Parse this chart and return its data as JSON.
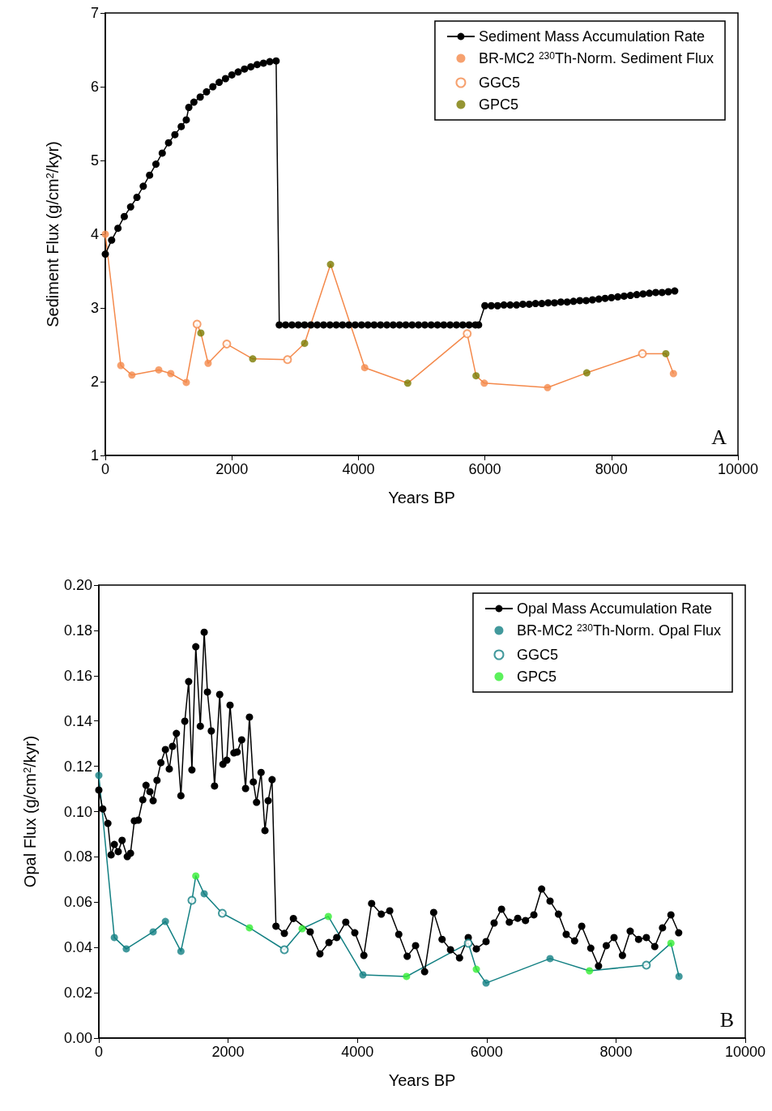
{
  "chart_data": [
    {
      "type": "line",
      "xlabel": "Years BP",
      "ylabel": "Sediment Flux (g/cm$^{2}$/kyr)",
      "annotations": [
        "A"
      ],
      "xlim": [
        0,
        10000
      ],
      "xticks": [
        0,
        2000,
        4000,
        6000,
        8000,
        10000
      ],
      "ylim": [
        1,
        7
      ],
      "yticks": [
        1,
        2,
        3,
        4,
        5,
        6,
        7
      ],
      "grid": false,
      "legend": "top right",
      "line_style": "solid",
      "x": [
        0,
        245,
        420,
        845,
        1035,
        1280,
        1450,
        1510,
        1625,
        1920,
        2330,
        2880,
        3150,
        3560,
        4100,
        4780,
        5720,
        5860,
        5990,
        6990,
        7610,
        8490,
        8860,
        8980
      ],
      "series": [
        {
          "name": "Sediment Mass Accumulation Rate",
          "type": "line",
          "marker": "circle",
          "color": "#000000",
          "x": [
            0,
            100,
            200,
            300,
            400,
            500,
            600,
            700,
            800,
            900,
            1000,
            1100,
            1200,
            1280,
            1320,
            1400,
            1500,
            1600,
            1700,
            1800,
            1900,
            2000,
            2100,
            2200,
            2300,
            2400,
            2500,
            2600,
            2700,
            2750,
            2850,
            2950,
            3050,
            3150,
            3250,
            3350,
            3450,
            3550,
            3650,
            3750,
            3850,
            3950,
            4050,
            4150,
            4250,
            4350,
            4450,
            4550,
            4650,
            4750,
            4850,
            4950,
            5050,
            5150,
            5250,
            5350,
            5450,
            5550,
            5650,
            5750,
            5850,
            5900,
            6000,
            6100,
            6200,
            6300,
            6400,
            6500,
            6600,
            6700,
            6800,
            6900,
            7000,
            7100,
            7200,
            7300,
            7400,
            7500,
            7600,
            7700,
            7800,
            7900,
            8000,
            8100,
            8200,
            8300,
            8400,
            8500,
            8600,
            8700,
            8800,
            8900,
            9000
          ],
          "values": [
            3.73,
            3.92,
            4.08,
            4.24,
            4.37,
            4.5,
            4.65,
            4.8,
            4.95,
            5.1,
            5.24,
            5.35,
            5.46,
            5.55,
            5.72,
            5.79,
            5.86,
            5.93,
            6.0,
            6.06,
            6.11,
            6.16,
            6.2,
            6.24,
            6.27,
            6.3,
            6.32,
            6.34,
            6.35,
            2.77,
            2.77,
            2.77,
            2.77,
            2.77,
            2.77,
            2.77,
            2.77,
            2.77,
            2.77,
            2.77,
            2.77,
            2.77,
            2.77,
            2.77,
            2.77,
            2.77,
            2.77,
            2.77,
            2.77,
            2.77,
            2.77,
            2.77,
            2.77,
            2.77,
            2.77,
            2.77,
            2.77,
            2.77,
            2.77,
            2.77,
            2.77,
            2.77,
            3.03,
            3.03,
            3.03,
            3.04,
            3.04,
            3.04,
            3.05,
            3.05,
            3.06,
            3.06,
            3.07,
            3.07,
            3.08,
            3.08,
            3.09,
            3.1,
            3.1,
            3.11,
            3.12,
            3.13,
            3.14,
            3.15,
            3.16,
            3.17,
            3.18,
            3.19,
            3.2,
            3.21,
            3.21,
            3.22,
            3.23
          ]
        },
        {
          "type": "line",
          "marker": "none",
          "color": "#f4894b",
          "values": [
            4.0,
            2.22,
            2.09,
            2.16,
            2.11,
            1.99,
            2.78,
            2.66,
            2.25,
            2.51,
            2.31,
            2.3,
            2.52,
            3.59,
            2.19,
            1.98,
            2.65,
            2.08,
            1.98,
            1.92,
            2.12,
            2.38,
            2.38,
            2.11
          ]
        },
        {
          "name": "BR-MC2 $^{230}$Th-Norm. Sediment Flux",
          "type": "scatter",
          "marker": "circle",
          "color": "#f4894b",
          "values": [
            4.0,
            2.22,
            2.09,
            2.16,
            2.11,
            1.99,
            null,
            null,
            2.25,
            null,
            null,
            null,
            null,
            null,
            2.19,
            null,
            null,
            null,
            1.98,
            1.92,
            null,
            null,
            null,
            2.11
          ]
        },
        {
          "name": "GGC5",
          "type": "scatter",
          "marker": "open_circle",
          "color": "#f4894b",
          "values": [
            null,
            null,
            null,
            null,
            null,
            null,
            2.78,
            null,
            null,
            2.51,
            null,
            2.3,
            null,
            null,
            null,
            null,
            2.65,
            null,
            null,
            null,
            null,
            2.38,
            null,
            null
          ]
        },
        {
          "name": "GPC5",
          "type": "scatter",
          "marker": "circle",
          "color": "#7a7a00",
          "values": [
            null,
            null,
            null,
            null,
            null,
            null,
            null,
            2.66,
            null,
            null,
            2.31,
            null,
            2.52,
            3.59,
            null,
            1.98,
            null,
            2.08,
            null,
            null,
            2.12,
            null,
            2.38,
            null
          ]
        }
      ]
    },
    {
      "type": "line",
      "xlabel": "Years BP",
      "ylabel": "Opal Flux (g/cm$^{2}$/kyr)",
      "annotations": [
        "B"
      ],
      "xlim": [
        0,
        10000
      ],
      "xticks": [
        0,
        2000,
        4000,
        6000,
        8000,
        10000
      ],
      "ylim": [
        0,
        0.2
      ],
      "yticks": [
        {
          "value": 0,
          "label": "0.00"
        },
        {
          "value": 0.02,
          "label": "0.02"
        },
        {
          "value": 0.04,
          "label": "0.04"
        },
        {
          "value": 0.06,
          "label": "0.06"
        },
        {
          "value": 0.08,
          "label": "0.08"
        },
        {
          "value": 0.1,
          "label": "0.10"
        },
        {
          "value": 0.12,
          "label": "0.12"
        },
        {
          "value": 0.14,
          "label": "0.14"
        },
        {
          "value": 0.16,
          "label": "0.16"
        },
        {
          "value": 0.18,
          "label": "0.18"
        },
        {
          "value": 0.2,
          "label": "0.20"
        }
      ],
      "grid": false,
      "legend": "top right",
      "line_style": "solid",
      "x": [
        0,
        240,
        425,
        840,
        1030,
        1270,
        1440,
        1500,
        1630,
        1910,
        2330,
        2870,
        3145,
        3550,
        4085,
        4760,
        5715,
        5840,
        5990,
        6980,
        7590,
        8470,
        8850,
        8975
      ],
      "series": [
        {
          "name": "Opal Mass Accumulation Rate",
          "type": "line",
          "marker": "circle",
          "color": "#000000",
          "x": [
            0,
            60,
            140,
            190,
            240,
            300,
            360,
            440,
            490,
            550,
            610,
            680,
            730,
            790,
            840,
            900,
            960,
            1030,
            1090,
            1140,
            1200,
            1270,
            1330,
            1390,
            1440,
            1500,
            1570,
            1630,
            1680,
            1740,
            1790,
            1870,
            1920,
            1980,
            2030,
            2090,
            2140,
            2210,
            2270,
            2330,
            2390,
            2440,
            2510,
            2570,
            2620,
            2680,
            2740,
            2870,
            3010,
            3270,
            3420,
            3560,
            3680,
            3820,
            3960,
            4100,
            4220,
            4370,
            4500,
            4640,
            4770,
            4900,
            5040,
            5180,
            5310,
            5440,
            5580,
            5715,
            5840,
            5990,
            6115,
            6230,
            6350,
            6480,
            6600,
            6730,
            6850,
            6980,
            7110,
            7230,
            7360,
            7470,
            7610,
            7730,
            7850,
            7970,
            8100,
            8220,
            8350,
            8470,
            8600,
            8720,
            8850,
            8970
          ],
          "values": [
            0.1095,
            0.1012,
            0.0948,
            0.0809,
            0.0855,
            0.0823,
            0.0873,
            0.0801,
            0.0816,
            0.0959,
            0.0962,
            0.1052,
            0.1116,
            0.1088,
            0.1048,
            0.1138,
            0.1216,
            0.1274,
            0.1188,
            0.1288,
            0.1345,
            0.107,
            0.1399,
            0.1574,
            0.1184,
            0.1728,
            0.1377,
            0.1792,
            0.1528,
            0.1356,
            0.1113,
            0.1517,
            0.1209,
            0.1227,
            0.147,
            0.1259,
            0.1263,
            0.1317,
            0.1102,
            0.1417,
            0.1131,
            0.1041,
            0.1173,
            0.0916,
            0.1048,
            0.1141,
            0.0494,
            0.0462,
            0.0528,
            0.0469,
            0.0372,
            0.0422,
            0.0444,
            0.0512,
            0.0465,
            0.0365,
            0.0594,
            0.0547,
            0.0562,
            0.0458,
            0.0361,
            0.0408,
            0.0293,
            0.0555,
            0.0436,
            0.039,
            0.0354,
            0.0444,
            0.0394,
            0.0426,
            0.0508,
            0.0569,
            0.0512,
            0.0529,
            0.0519,
            0.0544,
            0.0658,
            0.0605,
            0.0547,
            0.0458,
            0.0429,
            0.0494,
            0.0397,
            0.0318,
            0.0408,
            0.0444,
            0.0365,
            0.0472,
            0.0436,
            0.0444,
            0.0404,
            0.0487,
            0.0544,
            0.0465
          ]
        },
        {
          "type": "line",
          "marker": "none",
          "color": "#138083",
          "values": [
            0.116,
            0.0444,
            0.0394,
            0.0469,
            0.0515,
            0.0383,
            0.0608,
            0.0716,
            0.0637,
            0.0551,
            0.0487,
            0.039,
            0.0483,
            0.0537,
            0.0279,
            0.0272,
            0.0419,
            0.0304,
            0.0243,
            0.0351,
            0.0297,
            0.0322,
            0.0419,
            0.0272
          ]
        },
        {
          "name": "BR-MC2 $^{230}$Th-Norm. Opal Flux",
          "type": "scatter",
          "marker": "circle",
          "color": "#138083",
          "values": [
            0.116,
            0.0444,
            0.0394,
            0.0469,
            0.0515,
            0.0383,
            null,
            null,
            0.0637,
            null,
            null,
            null,
            null,
            null,
            0.0279,
            null,
            null,
            null,
            0.0243,
            0.0351,
            null,
            null,
            null,
            0.0272
          ]
        },
        {
          "name": "GGC5",
          "type": "scatter",
          "marker": "open_circle",
          "color": "#138083",
          "values": [
            null,
            null,
            null,
            null,
            null,
            null,
            0.0608,
            null,
            null,
            0.0551,
            null,
            0.039,
            null,
            null,
            null,
            null,
            0.0419,
            null,
            null,
            null,
            null,
            0.0322,
            null,
            null
          ]
        },
        {
          "name": "GPC5",
          "type": "scatter",
          "marker": "circle",
          "color": "#33ee33",
          "values": [
            null,
            null,
            null,
            null,
            null,
            null,
            null,
            0.0716,
            null,
            null,
            0.0487,
            null,
            0.0483,
            0.0537,
            null,
            0.0272,
            null,
            0.0304,
            null,
            null,
            0.0297,
            null,
            0.0419,
            null
          ]
        }
      ]
    }
  ]
}
